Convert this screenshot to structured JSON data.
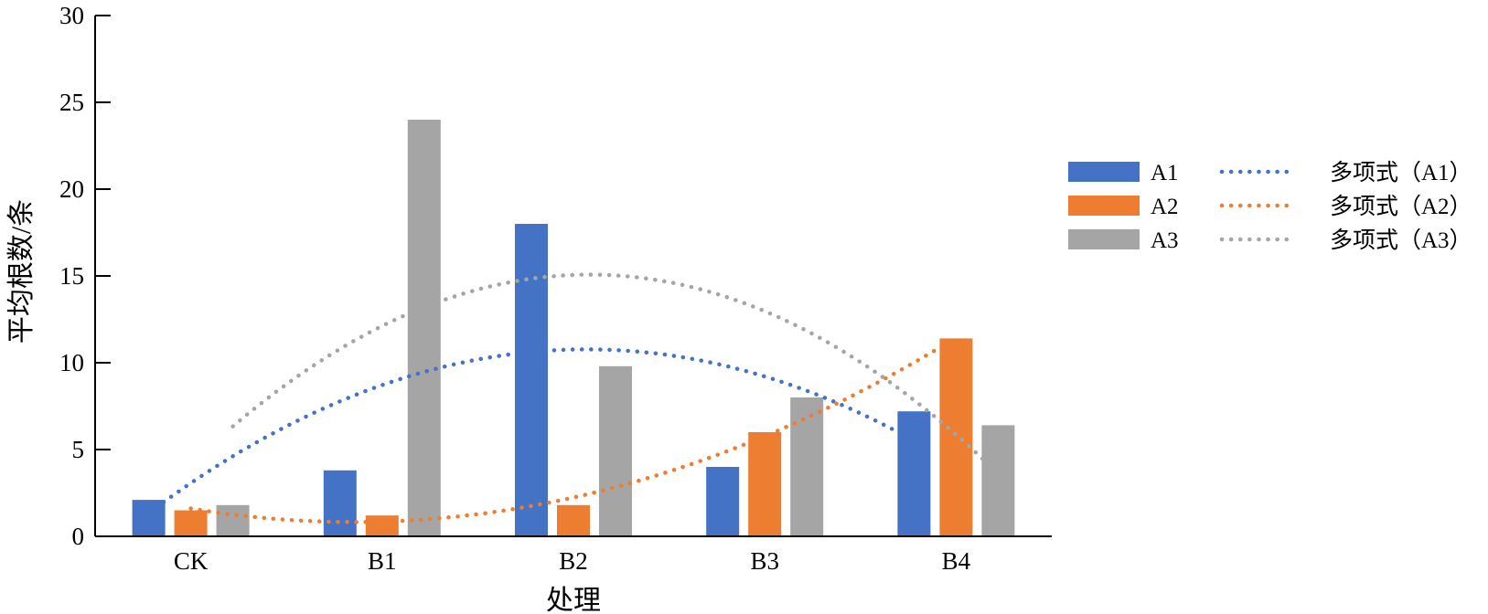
{
  "chart_data": {
    "type": "bar",
    "categories": [
      "CK",
      "B1",
      "B2",
      "B3",
      "B4"
    ],
    "series": [
      {
        "name": "A1",
        "color": "#4472C4",
        "values": [
          2.1,
          3.8,
          18.0,
          4.0,
          7.2
        ]
      },
      {
        "name": "A2",
        "color": "#ED7D31",
        "values": [
          1.5,
          1.2,
          1.8,
          6.0,
          11.4
        ]
      },
      {
        "name": "A3",
        "color": "#A5A5A5",
        "values": [
          1.8,
          24.0,
          9.8,
          8.0,
          6.4
        ]
      }
    ],
    "trendlines": [
      {
        "name": "多项式（A1）",
        "series": "A1",
        "type": "polynomial",
        "order": 2,
        "style": "dotted",
        "color": "#4472C4"
      },
      {
        "name": "多项式（A2）",
        "series": "A2",
        "type": "polynomial",
        "order": 2,
        "style": "dotted",
        "color": "#ED7D31"
      },
      {
        "name": "多项式（A3）",
        "series": "A3",
        "type": "polynomial",
        "order": 2,
        "style": "dotted",
        "color": "#A5A5A5"
      }
    ],
    "xlabel": "处理",
    "ylabel": "平均根数/条",
    "ylim": [
      0,
      30
    ],
    "yticks": [
      0,
      5,
      10,
      15,
      20,
      25,
      30
    ],
    "grid": false,
    "legend_position": "right"
  }
}
